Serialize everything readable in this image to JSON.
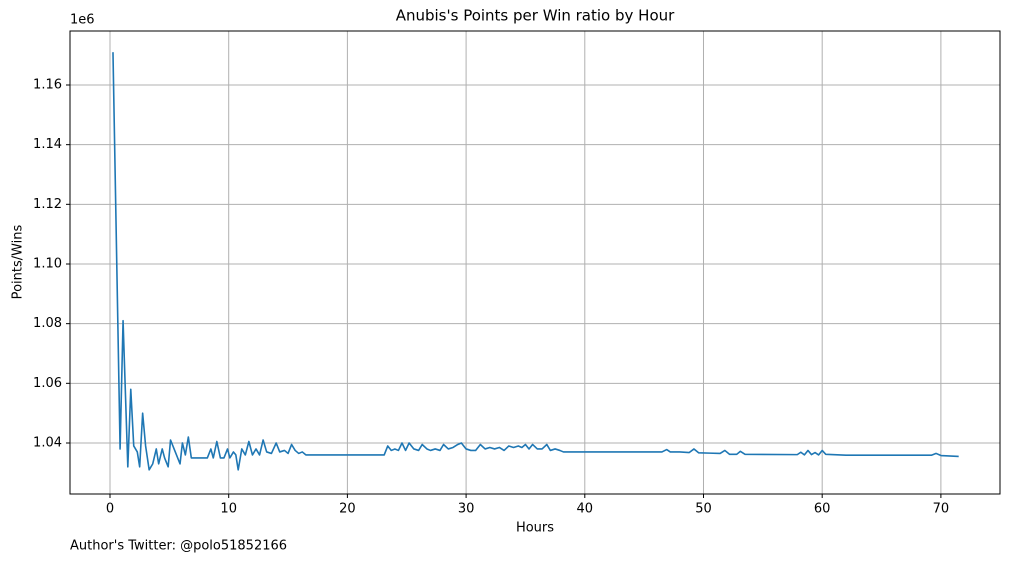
{
  "chart_data": {
    "type": "line",
    "title": "Anubis's Points per Win ratio by Hour",
    "xlabel": "Hours",
    "ylabel": "Points/Wins",
    "y_offset_label": "1e6",
    "footnote": "Author's Twitter: @polo51852166",
    "color": "#1f77b4",
    "grid": true,
    "xlim": [
      -3.37,
      74.98
    ],
    "ylim": [
      1.0229,
      1.1781
    ],
    "xticks": [
      0,
      10,
      20,
      30,
      40,
      50,
      60,
      70
    ],
    "yticks": [
      1.04,
      1.06,
      1.08,
      {
        "value": 1.1,
        "label": "1.10"
      },
      1.12,
      1.14,
      1.16
    ],
    "x": [
      0.25,
      0.85,
      1.1,
      1.5,
      1.75,
      2.0,
      2.3,
      2.5,
      2.75,
      3.0,
      3.3,
      3.6,
      3.9,
      4.1,
      4.4,
      4.6,
      4.9,
      5.1,
      5.5,
      5.9,
      6.1,
      6.35,
      6.6,
      6.85,
      8.2,
      8.5,
      8.7,
      9.0,
      9.3,
      9.6,
      9.9,
      10.1,
      10.4,
      10.6,
      10.8,
      11.1,
      11.4,
      11.7,
      12.0,
      12.3,
      12.6,
      12.9,
      13.2,
      13.6,
      14.0,
      14.3,
      14.7,
      15.0,
      15.3,
      15.6,
      15.9,
      16.2,
      16.5,
      23.1,
      23.4,
      23.7,
      24.0,
      24.3,
      24.6,
      24.9,
      25.2,
      25.6,
      26.0,
      26.3,
      26.7,
      27.0,
      27.4,
      27.8,
      28.1,
      28.5,
      28.9,
      29.3,
      29.6,
      30.0,
      30.4,
      30.8,
      31.2,
      31.6,
      32.0,
      32.4,
      32.8,
      33.2,
      33.6,
      34.0,
      34.4,
      34.7,
      35.0,
      35.3,
      35.6,
      36.0,
      36.4,
      36.8,
      37.1,
      37.5,
      37.9,
      38.2,
      46.5,
      46.9,
      47.2,
      48.0,
      48.8,
      49.2,
      49.6,
      50.5,
      51.4,
      51.8,
      52.2,
      52.8,
      53.1,
      53.5,
      57.9,
      58.2,
      58.5,
      58.8,
      59.1,
      59.4,
      59.7,
      60.0,
      60.3,
      62.0,
      69.2,
      69.6,
      70.0,
      71.5
    ],
    "values": [
      1.171,
      1.038,
      1.081,
      1.032,
      1.058,
      1.039,
      1.037,
      1.032,
      1.05,
      1.039,
      1.031,
      1.033,
      1.038,
      1.033,
      1.038,
      1.035,
      1.032,
      1.041,
      1.037,
      1.033,
      1.04,
      1.036,
      1.042,
      1.035,
      1.035,
      1.038,
      1.035,
      1.0405,
      1.035,
      1.035,
      1.038,
      1.035,
      1.037,
      1.036,
      1.031,
      1.038,
      1.036,
      1.0405,
      1.036,
      1.038,
      1.036,
      1.041,
      1.037,
      1.0365,
      1.04,
      1.037,
      1.0375,
      1.0365,
      1.0395,
      1.0375,
      1.0365,
      1.037,
      1.036,
      1.036,
      1.039,
      1.0375,
      1.038,
      1.0375,
      1.04,
      1.0375,
      1.04,
      1.038,
      1.0375,
      1.0395,
      1.038,
      1.0375,
      1.038,
      1.0375,
      1.0395,
      1.038,
      1.0385,
      1.0395,
      1.04,
      1.038,
      1.0375,
      1.0375,
      1.0395,
      1.038,
      1.0385,
      1.038,
      1.0385,
      1.0375,
      1.039,
      1.0385,
      1.039,
      1.0385,
      1.0395,
      1.038,
      1.0395,
      1.038,
      1.038,
      1.0395,
      1.0375,
      1.038,
      1.0375,
      1.037,
      1.037,
      1.0378,
      1.037,
      1.037,
      1.0368,
      1.038,
      1.0367,
      1.0366,
      1.0365,
      1.0375,
      1.0362,
      1.0362,
      1.0372,
      1.0362,
      1.0361,
      1.0369,
      1.036,
      1.0375,
      1.0361,
      1.0368,
      1.036,
      1.0375,
      1.0362,
      1.0359,
      1.0359,
      1.0365,
      1.0358,
      1.0355
    ]
  }
}
